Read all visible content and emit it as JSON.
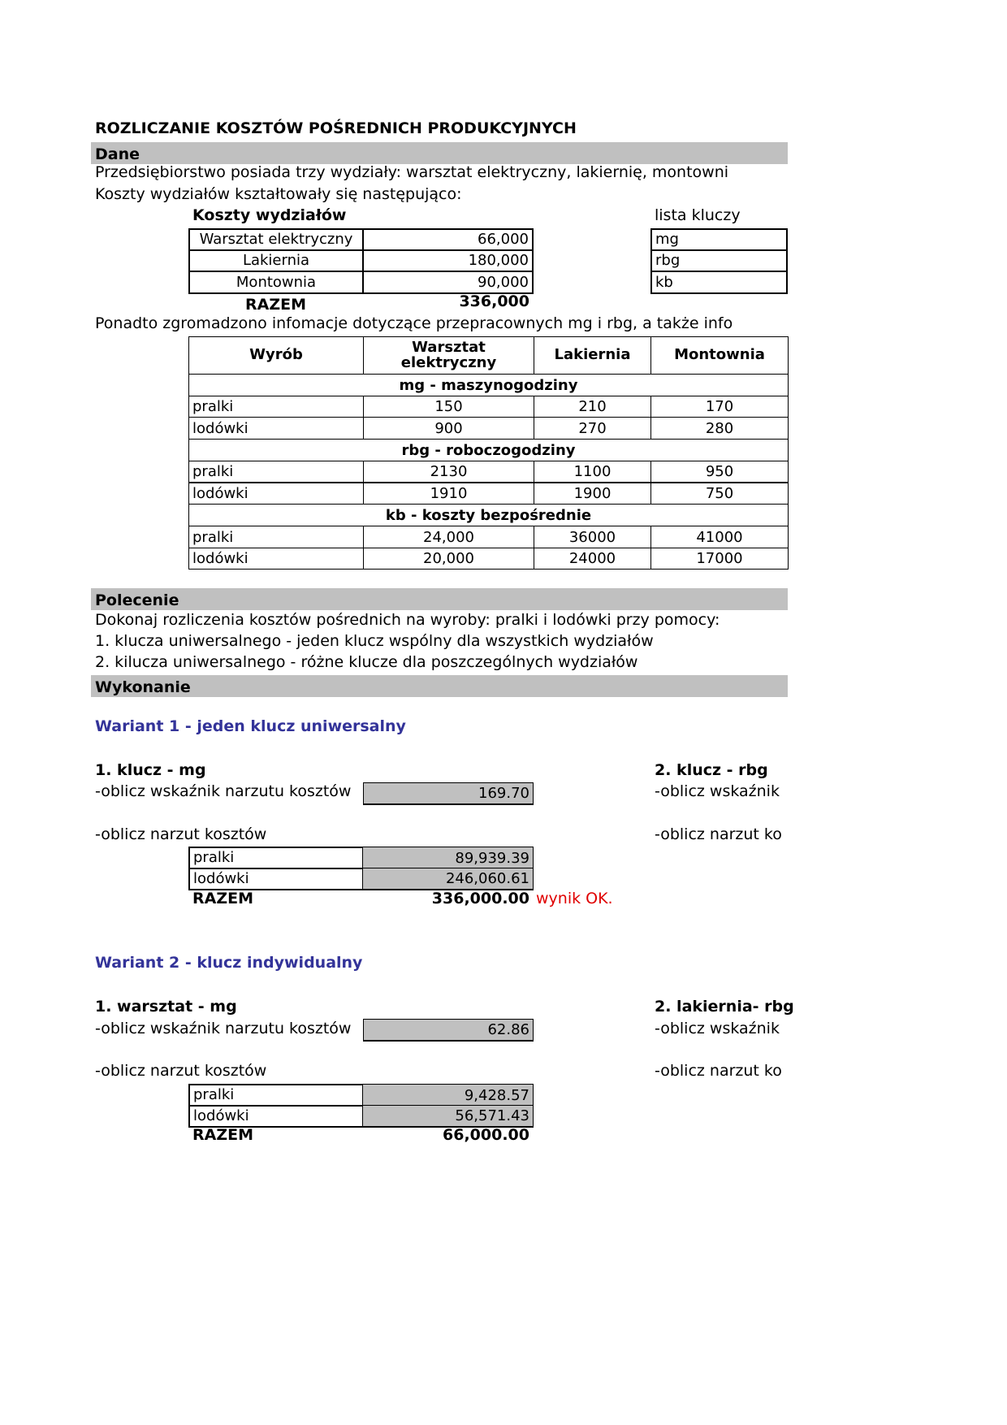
{
  "title": "ROZLICZANIE KOSZTÓW POŚREDNICH PRODUKCYJNYCH",
  "sections": {
    "dane": "Dane",
    "polecenie": "Polecenie",
    "wykonanie": "Wykonanie"
  },
  "intro": {
    "line1": "Przedsiębiorstwo posiada trzy wydziały: warsztat elektryczny, lakiernię, montowni",
    "line2": "Koszty wydziałów kształtowały się następująco:"
  },
  "costs": {
    "heading": "Koszty wydziałów",
    "rows": [
      {
        "label": "Warsztat elektryczny",
        "value": "66,000"
      },
      {
        "label": "Lakiernia",
        "value": "180,000"
      },
      {
        "label": "Montownia",
        "value": "90,000"
      }
    ],
    "total_label": "RAZEM",
    "total": "336,000"
  },
  "keys": {
    "heading": "lista kluczy",
    "items": [
      "mg",
      "rbg",
      "kb"
    ]
  },
  "extra_info": "Ponadto zgromadzono infomacje dotyczące przepracownych mg i rbg, a także info",
  "data_table": {
    "headers": [
      "Wyrób",
      "Warsztat elektryczny",
      "Lakiernia",
      "Montownia"
    ],
    "groups": [
      {
        "title": "mg - maszynogodziny",
        "rows": [
          [
            "pralki",
            "150",
            "210",
            "170"
          ],
          [
            "lodówki",
            "900",
            "270",
            "280"
          ]
        ]
      },
      {
        "title": "rbg - roboczogodziny",
        "rows": [
          [
            "pralki",
            "2130",
            "1100",
            "950"
          ],
          [
            "lodówki",
            "1910",
            "1900",
            "750"
          ]
        ]
      },
      {
        "title": "kb - koszty bezpośrednie",
        "rows": [
          [
            "pralki",
            "24,000",
            "36000",
            "41000"
          ],
          [
            "lodówki",
            "20,000",
            "24000",
            "17000"
          ]
        ]
      }
    ]
  },
  "task": {
    "line1": " Dokonaj rozliczenia kosztów pośrednich na wyroby: pralki i lodówki przy pomocy:",
    "line2": "1. klucza uniwersalnego - jeden klucz wspólny dla wszystkich wydziałów",
    "line3": "2. kilucza uniwersalnego - różne klucze dla poszczególnych wydziałów"
  },
  "variant1": {
    "title": "Wariant 1 - jeden klucz uniwersalny",
    "left": {
      "heading": "1. klucz - mg",
      "rate_label": "-oblicz wskaźnik narzutu kosztów",
      "rate": "169.70",
      "alloc_label": "-oblicz narzut kosztów",
      "rows": [
        {
          "label": "pralki",
          "value": "89,939.39"
        },
        {
          "label": "lodówki",
          "value": "246,060.61"
        }
      ],
      "total_label": "RAZEM",
      "total": "336,000.00",
      "note": "wynik OK."
    },
    "right": {
      "heading": "2. klucz - rbg",
      "rate_label": "-oblicz wskaźnik",
      "alloc_label": "-oblicz narzut ko"
    }
  },
  "variant2": {
    "title": "Wariant 2 -  klucz indywidualny",
    "left": {
      "heading": "1. warsztat - mg",
      "rate_label": "-oblicz wskaźnik narzutu kosztów",
      "rate": "62.86",
      "alloc_label": "-oblicz narzut kosztów",
      "rows": [
        {
          "label": "pralki",
          "value": "9,428.57"
        },
        {
          "label": "lodówki",
          "value": "56,571.43"
        }
      ],
      "total_label": "RAZEM",
      "total": "66,000.00"
    },
    "right": {
      "heading": "2. lakiernia- rbg",
      "rate_label": "-oblicz wskaźnik",
      "alloc_label": "-oblicz narzut ko"
    }
  },
  "colors": {
    "section_bar": "#c0c0c0",
    "variant_title": "#333399",
    "ok_note": "#e00000"
  }
}
